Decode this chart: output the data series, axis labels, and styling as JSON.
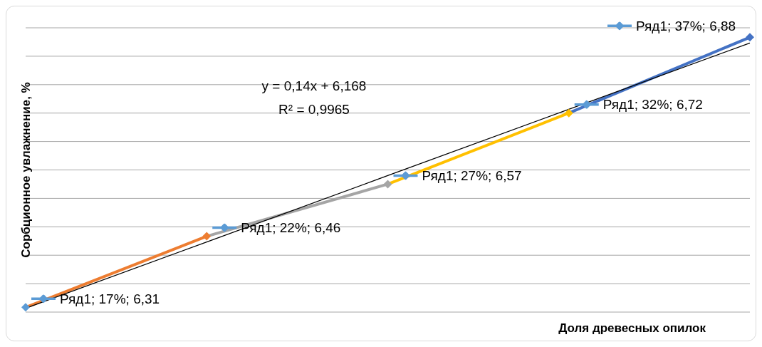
{
  "chart_data": {
    "type": "line",
    "xlabel": "Доля древесных опилок",
    "ylabel": "Сорбционное увлажнение, %",
    "categories": [
      null,
      null,
      null,
      null,
      null
    ],
    "series": [
      {
        "marker": "diamond",
        "values": [
          6.31,
          6.46,
          6.57,
          6.72,
          6.88
        ],
        "colors": [
          "#5b9bd5",
          "#ed7d31",
          "#a5a5a5",
          "#ffc000",
          "#4472c4"
        ],
        "value_labels": [
          "Ряд1; 17%; 6,31",
          "Ряд1; 22%; 6,46",
          "Ряд1; 27%; 6,57",
          "Ряд1; 32%; 6,72",
          "Ряд1; 37%; 6,88"
        ]
      },
      {
        "type": "line",
        "marker": "none",
        "color": "#000000",
        "values": [
          6.308,
          6.448,
          6.588,
          6.728,
          6.868
        ]
      }
    ],
    "annotations": [
      "y = 0,14x + 6,168",
      "R² = 0,9965"
    ],
    "grid": "y",
    "legend": false,
    "tick_labels": false
  }
}
